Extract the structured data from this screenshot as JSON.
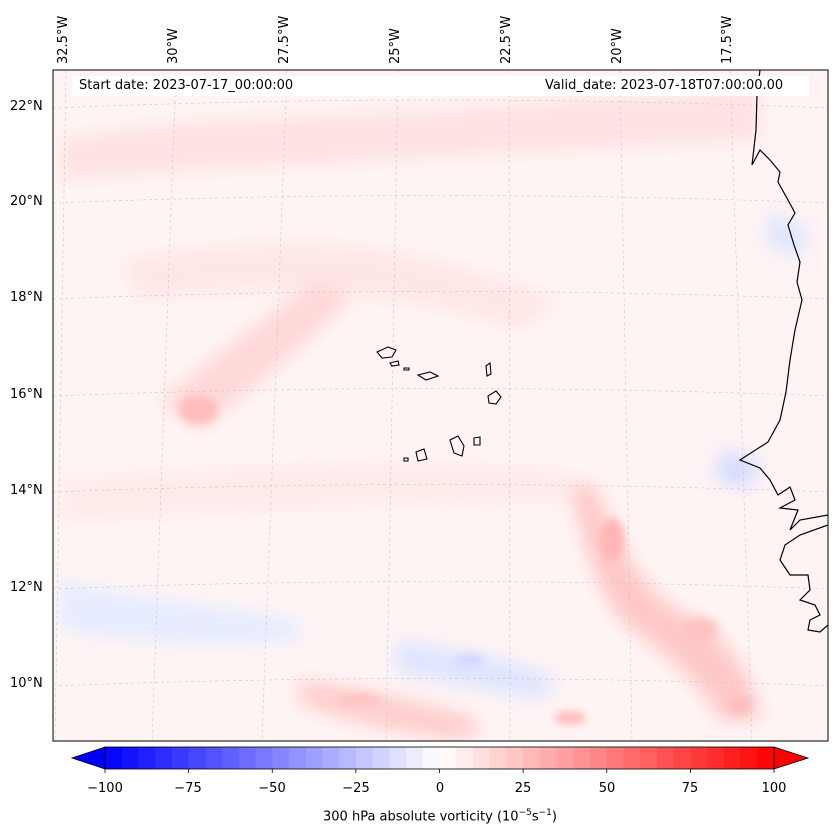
{
  "map": {
    "start_date": "Start date: 2023-07-17_00:00:00",
    "valid_date": "Valid_date: 2023-07-18T07:00:00.00",
    "lon_labels": [
      "32.5°W",
      "30°W",
      "27.5°W",
      "25°W",
      "22.5°W",
      "20°W",
      "17.5°W"
    ],
    "lat_labels": [
      "22°N",
      "20°N",
      "18°N",
      "16°N",
      "14°N",
      "12°N",
      "10°N"
    ]
  },
  "colorbar": {
    "ticks": [
      "−100",
      "−75",
      "−50",
      "−25",
      "0",
      "25",
      "50",
      "75",
      "100"
    ],
    "label": "300 hPa absolute vorticity (10",
    "label_exp1": "−5",
    "label_mid": "s",
    "label_exp2": "−1",
    "label_end": ")",
    "colors": {
      "negative": "#0000ff",
      "neutral": "#ffffff",
      "positive": "#ff0000"
    }
  }
}
